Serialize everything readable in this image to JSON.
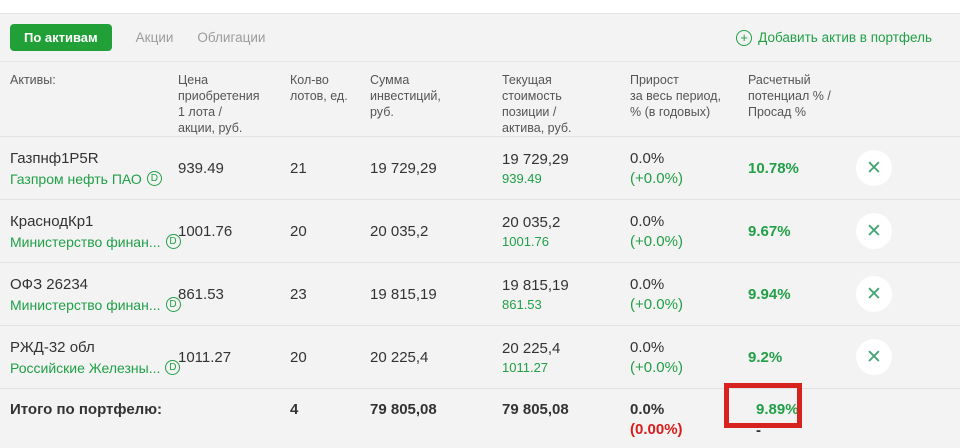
{
  "colors": {
    "brand_green": "#21a038",
    "text_green": "#21a047",
    "alert_red": "#d91c1c",
    "annotation_red": "#d6231f"
  },
  "icons": {
    "plus": "+",
    "close": "✕",
    "d_badge": "D"
  },
  "toolbar": {
    "view_button": "По активам",
    "tabs": [
      {
        "label": "Акции"
      },
      {
        "label": "Облигации"
      }
    ],
    "add_link": "Добавить актив в портфель"
  },
  "table": {
    "headers": {
      "assets": "Активы:",
      "price": "Цена\nприобретения\n1 лота /\nакции, руб.",
      "lots": "Кол-во\nлотов, ед.",
      "invested": "Сумма\nинвестиций,\nруб.",
      "current": "Текущая\nстоимость\nпозиции /\nактива, руб.",
      "growth": "Прирост\nза весь период,\n% (в годовых)",
      "potential": "Расчетный\nпотенциал % /\nПросад %"
    },
    "rows": [
      {
        "ticker": "Газпнф1P5R",
        "name": "Газпром нефть ПАО",
        "price": "939.49",
        "lots": "21",
        "invested": "19 729,29",
        "current": "19 729,29",
        "current_sub": "939.49",
        "growth": "0.0%",
        "growth_sub": "(+0.0%)",
        "potential": "10.78%"
      },
      {
        "ticker": "КраснодКр1",
        "name": "Министерство финан...",
        "price": "1001.76",
        "lots": "20",
        "invested": "20 035,2",
        "current": "20 035,2",
        "current_sub": "1001.76",
        "growth": "0.0%",
        "growth_sub": "(+0.0%)",
        "potential": "9.67%"
      },
      {
        "ticker": "ОФЗ 26234",
        "name": "Министерство финан...",
        "price": "861.53",
        "lots": "23",
        "invested": "19 815,19",
        "current": "19 815,19",
        "current_sub": "861.53",
        "growth": "0.0%",
        "growth_sub": "(+0.0%)",
        "potential": "9.94%"
      },
      {
        "ticker": "РЖД-32 обл",
        "name": "Российские Железны...",
        "price": "1011.27",
        "lots": "20",
        "invested": "20 225,4",
        "current": "20 225,4",
        "current_sub": "1011.27",
        "growth": "0.0%",
        "growth_sub": "(+0.0%)",
        "potential": "9.2%"
      }
    ],
    "total": {
      "label": "Итого по портфелю:",
      "lots": "4",
      "invested": "79 805,08",
      "current": "79 805,08",
      "growth": "0.0%",
      "growth_sub": "(0.00%)",
      "potential": "9.89%",
      "potential_sub": "-"
    }
  }
}
